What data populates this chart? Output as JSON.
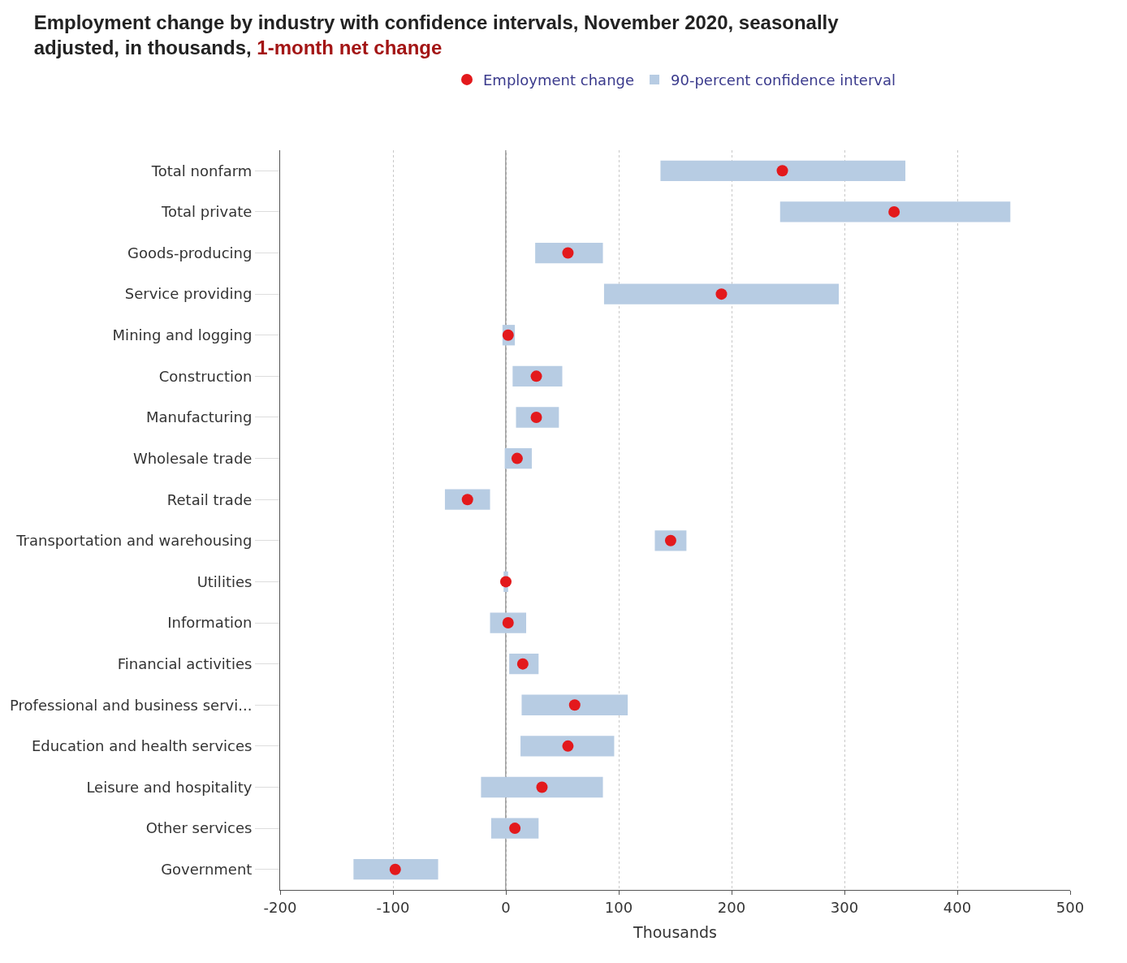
{
  "chart_data": {
    "type": "bar",
    "orientation": "horizontal",
    "title": "Employment change by industry with confidence intervals, November 2020, seasonally adjusted, in thousands,",
    "subtitle": "1-month net change",
    "xlabel": "Thousands",
    "categories": [
      "Total nonfarm",
      "Total private",
      "Goods-producing",
      "Service providing",
      "Mining and logging",
      "Construction",
      "Manufacturing",
      "Wholesale trade",
      "Retail trade",
      "Transportation and warehousing",
      "Utilities",
      "Information",
      "Financial activities",
      "Professional and business servi...",
      "Education and health services",
      "Leisure and hospitality",
      "Other services",
      "Government"
    ],
    "series": [
      {
        "name": "Employment change",
        "type": "scatter",
        "color": "#e3191c",
        "marker": "circle",
        "values": [
          245,
          344,
          55,
          191,
          2,
          27,
          27,
          10,
          -34,
          146,
          0,
          2,
          15,
          61,
          55,
          32,
          8,
          -98
        ]
      },
      {
        "name": "90-percent confidence interval",
        "color": "#b7cce3",
        "base": [
          137,
          243,
          26,
          87,
          -3,
          6,
          9,
          -1,
          -54,
          132,
          -2,
          -14,
          3,
          14,
          13,
          -22,
          -13,
          -135
        ],
        "values": [
          217,
          204,
          60,
          208,
          11,
          44,
          38,
          24,
          40,
          28,
          4,
          32,
          26,
          94,
          83,
          108,
          42,
          75
        ]
      }
    ],
    "xlim": [
      -200,
      500
    ],
    "xticks": [
      -200,
      -100,
      0,
      100,
      200,
      300,
      400,
      500
    ],
    "ref_lines": [
      {
        "axis": "x",
        "value": 0,
        "color": "#888888"
      }
    ],
    "grid": "x",
    "legend": "top"
  }
}
